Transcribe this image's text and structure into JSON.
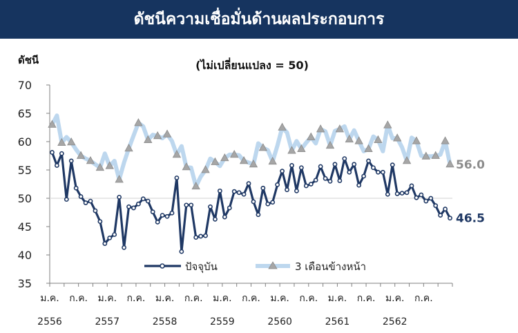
{
  "header": {
    "title": "ดัชนีความเชื่อมั่นด้านผลประกอบการ"
  },
  "chart_data": {
    "type": "line",
    "title": "ดัชนีความเชื่อมั่นด้านผลประกอบการ",
    "subtitle": "(ไม่เปลี่ยนแปลง  = 50)",
    "ylabel": "ดัชนี",
    "xlabel": "",
    "ylim": [
      35,
      70
    ],
    "yticks": [
      "35",
      "40",
      "45",
      "50",
      "55",
      "60",
      "65",
      "70"
    ],
    "reference_line": 50,
    "grid": false,
    "legend_position": "bottom-center",
    "xtick_month_labels": [
      "ม.ค.",
      "ก.ค.",
      "ม.ค.",
      "ก.ค.",
      "ม.ค.",
      "ก.ค.",
      "ม.ค.",
      "ก.ค.",
      "ม.ค.",
      "ก.ค.",
      "ม.ค.",
      "ก.ค.",
      "ม.ค.",
      "ก.ค."
    ],
    "xtick_year_labels": [
      "2556",
      "2557",
      "2558",
      "2559",
      "2560",
      "2561",
      "2562"
    ],
    "period_start": "2013-01",
    "series": [
      {
        "name": "ปัจจุบัน",
        "color": "#1f3864",
        "marker": "circle",
        "end_label": "46.5",
        "values": [
          58.1,
          55.8,
          57.9,
          49.8,
          56.6,
          51.8,
          50.3,
          49.2,
          49.5,
          47.8,
          45.9,
          42.0,
          43.0,
          43.6,
          50.2,
          41.3,
          48.5,
          48.3,
          49.0,
          49.9,
          49.5,
          47.6,
          45.8,
          47.0,
          46.8,
          47.4,
          53.6,
          40.6,
          48.8,
          48.8,
          43.1,
          43.3,
          43.4,
          48.5,
          46.3,
          51.3,
          46.7,
          48.3,
          51.2,
          51.0,
          50.7,
          52.6,
          49.4,
          47.1,
          51.8,
          49.0,
          49.3,
          52.4,
          54.8,
          51.5,
          55.8,
          51.3,
          55.4,
          52.2,
          52.5,
          53.2,
          55.6,
          53.5,
          53.0,
          56.0,
          53.1,
          57.0,
          54.6,
          56.0,
          52.3,
          53.9,
          56.6,
          55.4,
          54.6,
          54.6,
          50.7,
          55.9,
          50.8,
          50.9,
          51.0,
          52.2,
          50.1,
          50.6,
          49.5,
          50.0,
          48.7,
          47.0,
          48.1,
          46.5
        ]
      },
      {
        "name": "3 เดือนข้างหน้า",
        "color": "#bdd7ee",
        "marker": "triangle",
        "end_label": "56.0",
        "values": [
          63.0,
          64.6,
          59.8,
          60.8,
          59.9,
          58.6,
          57.5,
          57.0,
          56.6,
          56.0,
          55.4,
          57.9,
          55.7,
          56.6,
          53.3,
          56.3,
          58.8,
          61.1,
          63.3,
          62.7,
          60.3,
          61.2,
          61.0,
          60.6,
          61.3,
          60.1,
          57.7,
          59.2,
          55.5,
          55.4,
          52.1,
          53.8,
          55.0,
          57.0,
          56.4,
          55.7,
          57.1,
          57.7,
          57.7,
          57.6,
          56.6,
          56.3,
          56.0,
          59.7,
          58.9,
          58.5,
          56.5,
          59.3,
          62.5,
          61.6,
          58.4,
          60.1,
          58.7,
          59.8,
          60.8,
          59.7,
          62.2,
          61.8,
          59.3,
          61.9,
          62.2,
          62.7,
          60.4,
          62.0,
          60.1,
          58.3,
          58.7,
          60.9,
          60.3,
          58.3,
          62.9,
          60.6,
          60.6,
          59.0,
          56.6,
          60.7,
          60.1,
          57.5,
          57.4,
          57.4,
          57.5,
          57.7,
          60.1,
          56.0
        ]
      }
    ]
  }
}
